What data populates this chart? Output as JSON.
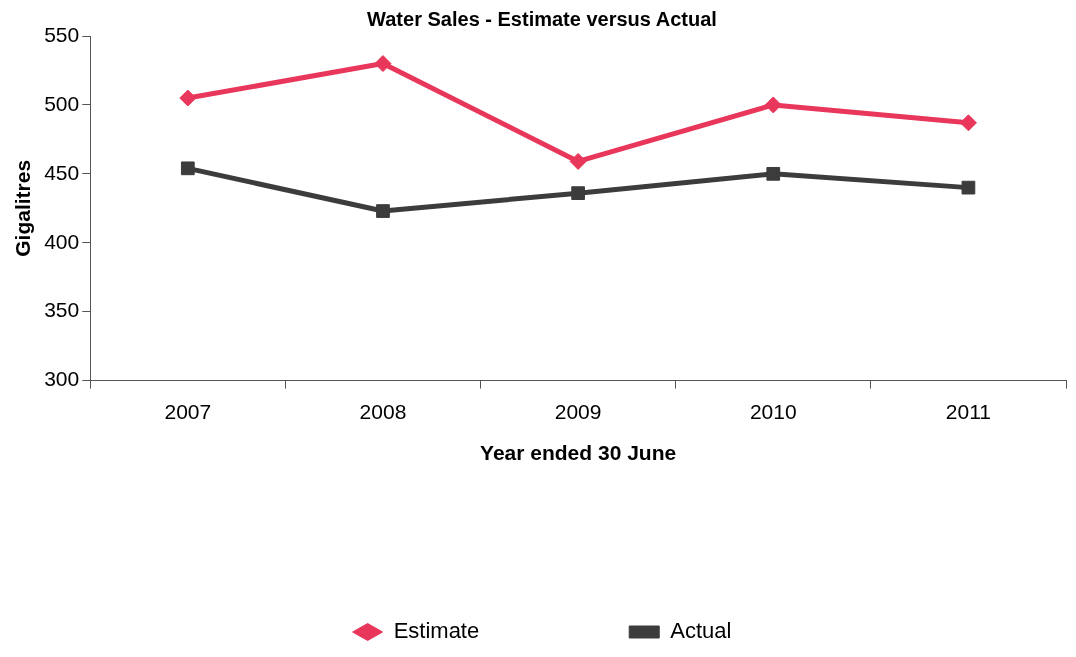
{
  "chart_data": {
    "type": "line",
    "title": "Water Sales - Estimate versus Actual",
    "xlabel": "Year ended 30 June",
    "ylabel": "Gigalitres",
    "categories": [
      "2007",
      "2008",
      "2009",
      "2010",
      "2011"
    ],
    "series": [
      {
        "name": "Estimate",
        "color": "#e8375a",
        "marker": "diamond",
        "values": [
          505,
          530,
          459,
          500,
          487
        ]
      },
      {
        "name": "Actual",
        "color": "#3c3c3c",
        "marker": "square",
        "values": [
          454,
          423,
          436,
          450,
          440
        ]
      }
    ],
    "ylim": [
      300,
      550
    ],
    "yticks": [
      300,
      350,
      400,
      450,
      500,
      550
    ],
    "grid": false,
    "legend": "bottom",
    "line_style": "solid"
  }
}
